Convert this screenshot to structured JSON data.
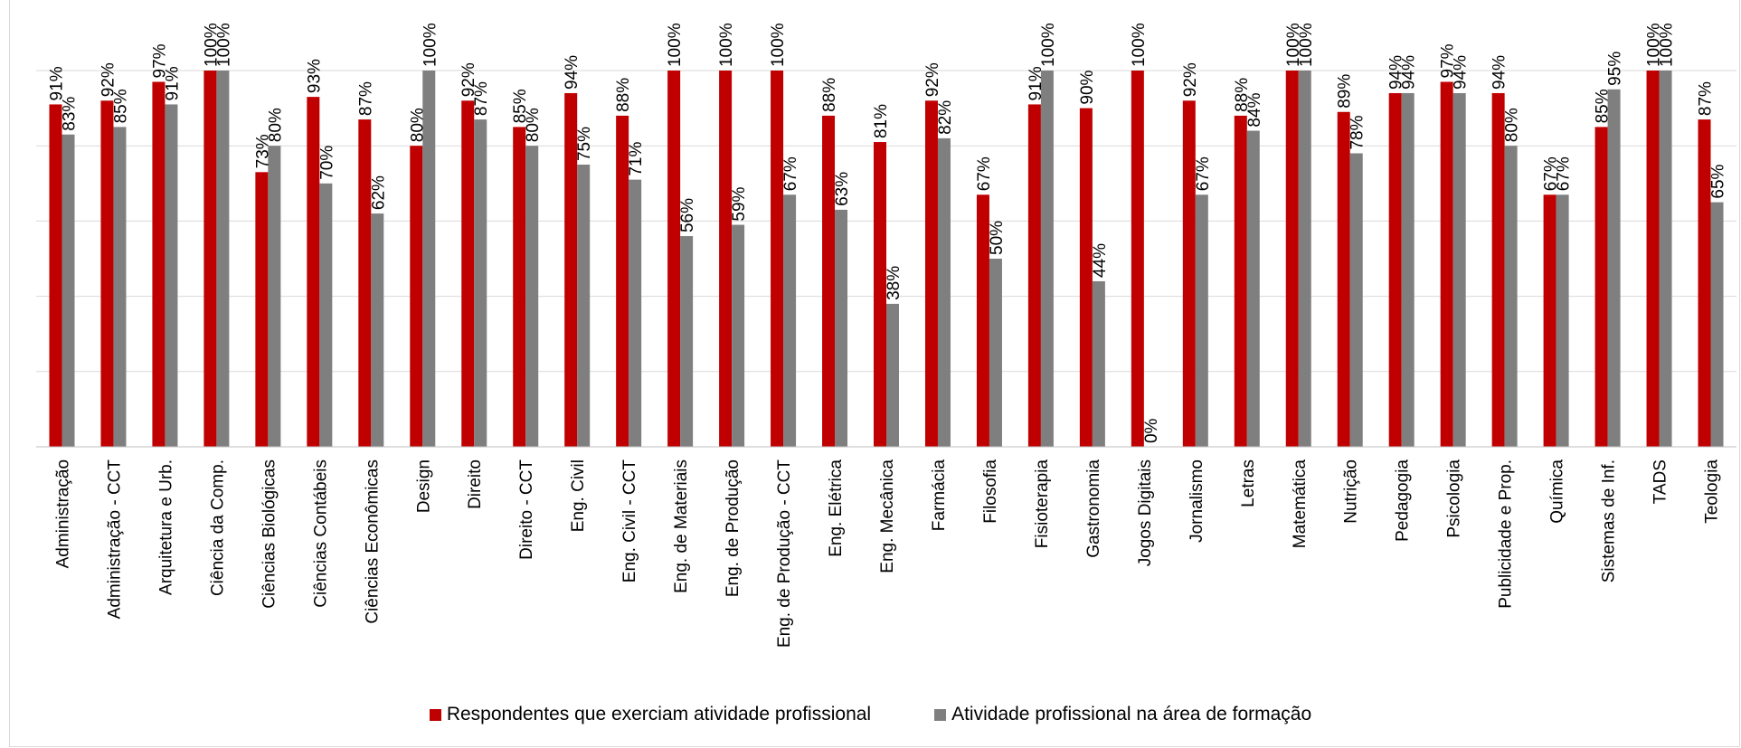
{
  "chart_data": {
    "type": "bar",
    "title": "",
    "xlabel": "",
    "ylabel": "",
    "ylim": [
      0,
      100
    ],
    "grid": true,
    "legend_position": "bottom",
    "categories": [
      "Administração",
      "Administração - CCT",
      "Arquitetura e Urb.",
      "Ciência da Comp.",
      "Ciências Biológicas",
      "Ciências Contábeis",
      "Ciências Econômicas",
      "Design",
      "Direito",
      "Direito - CCT",
      "Eng. Civil",
      "Eng. Civil - CCT",
      "Eng. de Materiais",
      "Eng. de Produção",
      "Eng. de Produção - CCT",
      "Eng. Elétrica",
      "Eng. Mecânica",
      "Farmácia",
      "Filosofia",
      "Fisioterapia",
      "Gastronomia",
      "Jogos Digitais",
      "Jornalismo",
      "Letras",
      "Matemática",
      "Nutrição",
      "Pedagogia",
      "Psicologia",
      "Publicidade e Prop.",
      "Química",
      "Sistemas de Inf.",
      "TADS",
      "Teologia"
    ],
    "series": [
      {
        "name": "Respondentes que exerciam atividade profissional",
        "color": "#c00000",
        "values": [
          91,
          92,
          97,
          100,
          73,
          93,
          87,
          80,
          92,
          85,
          94,
          88,
          100,
          100,
          100,
          88,
          81,
          92,
          67,
          91,
          90,
          100,
          92,
          88,
          100,
          89,
          94,
          97,
          94,
          67,
          85,
          100,
          87
        ],
        "labels": [
          "91%",
          "92%",
          "97%",
          "100%",
          "73%",
          "93%",
          "87%",
          "80%",
          "92%",
          "85%",
          "94%",
          "88%",
          "100%",
          "100%",
          "100%",
          "88%",
          "81%",
          "92%",
          "67%",
          "91%",
          "90%",
          "100%",
          "92%",
          "88%",
          "100%",
          "89%",
          "94%",
          "97%",
          "94%",
          "67%",
          "85%",
          "100%",
          "87%"
        ]
      },
      {
        "name": "Atividade profissional na área de formação",
        "color": "#7f7f7f",
        "values": [
          83,
          85,
          91,
          100,
          80,
          70,
          62,
          100,
          87,
          80,
          75,
          71,
          56,
          59,
          67,
          63,
          38,
          82,
          50,
          100,
          44,
          0,
          67,
          84,
          100,
          78,
          94,
          94,
          80,
          67,
          95,
          100,
          65
        ],
        "labels": [
          "83%",
          "85%",
          "91%",
          "100%",
          "80%",
          "70%",
          "62%",
          "100%",
          "87%",
          "80%",
          "75%",
          "71%",
          "56%",
          "59%",
          "67%",
          "63%",
          "38%",
          "82%",
          "50%",
          "100%",
          "44%",
          "0%",
          "67%",
          "84%",
          "100%",
          "78%",
          "94%",
          "94%",
          "80%",
          "67%",
          "95%",
          "100%",
          "65%"
        ]
      }
    ]
  }
}
